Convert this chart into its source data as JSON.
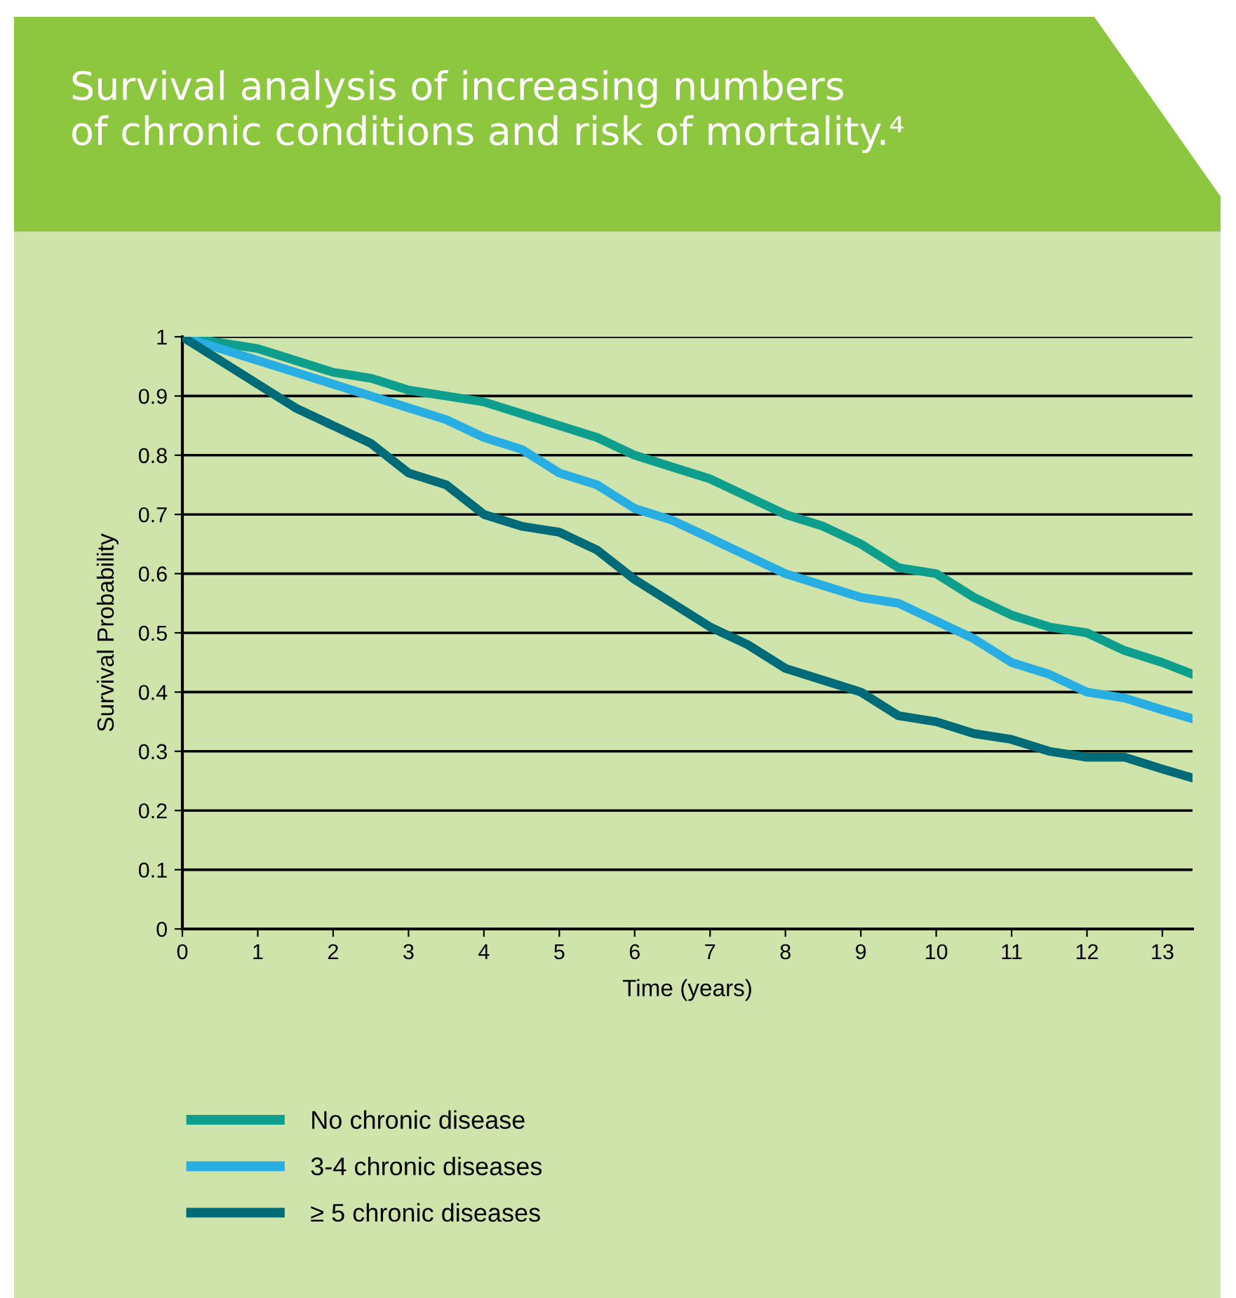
{
  "chart_data": {
    "type": "line",
    "title": "Survival analysis of increasing numbers\nof chronic conditions and risk of mortality.⁴",
    "xlabel": "Time (years)",
    "ylabel": "Survival Probability",
    "x": [
      0,
      0.5,
      1,
      1.5,
      2,
      2.5,
      3,
      3.5,
      4,
      4.5,
      5,
      5.5,
      6,
      6.5,
      7,
      7.5,
      8,
      8.5,
      9,
      9.5,
      10,
      10.5,
      11,
      11.5,
      12,
      12.5,
      13,
      13.4
    ],
    "series": [
      {
        "name": "No chronic disease",
        "color": "#0e9e8e",
        "values": [
          1.0,
          0.99,
          0.98,
          0.96,
          0.94,
          0.93,
          0.91,
          0.9,
          0.89,
          0.87,
          0.85,
          0.83,
          0.8,
          0.78,
          0.76,
          0.73,
          0.7,
          0.68,
          0.65,
          0.61,
          0.6,
          0.56,
          0.53,
          0.51,
          0.5,
          0.47,
          0.45,
          0.43
        ]
      },
      {
        "name": "3-4 chronic diseases",
        "color": "#29aee4",
        "values": [
          1.0,
          0.98,
          0.96,
          0.94,
          0.92,
          0.9,
          0.88,
          0.86,
          0.83,
          0.81,
          0.77,
          0.75,
          0.71,
          0.69,
          0.66,
          0.63,
          0.6,
          0.58,
          0.56,
          0.55,
          0.52,
          0.49,
          0.45,
          0.43,
          0.4,
          0.39,
          0.37,
          0.355
        ]
      },
      {
        "name": "≥ 5 chronic diseases",
        "color": "#006b78",
        "values": [
          1.0,
          0.96,
          0.92,
          0.88,
          0.85,
          0.82,
          0.77,
          0.75,
          0.7,
          0.68,
          0.67,
          0.64,
          0.59,
          0.55,
          0.51,
          0.48,
          0.44,
          0.42,
          0.4,
          0.36,
          0.35,
          0.33,
          0.32,
          0.3,
          0.29,
          0.29,
          0.27,
          0.255
        ]
      }
    ],
    "xlim": [
      0,
      13.4
    ],
    "xticks": [
      0,
      1,
      2,
      3,
      4,
      5,
      6,
      7,
      8,
      9,
      10,
      11,
      12,
      13
    ],
    "ylim": [
      0,
      1
    ],
    "yticks": [
      0,
      0.1,
      0.2,
      0.3,
      0.4,
      0.5,
      0.6,
      0.7,
      0.8,
      0.9,
      1
    ],
    "grid": "y",
    "legend": "bottom",
    "marker": "none",
    "line_style": "solid"
  }
}
